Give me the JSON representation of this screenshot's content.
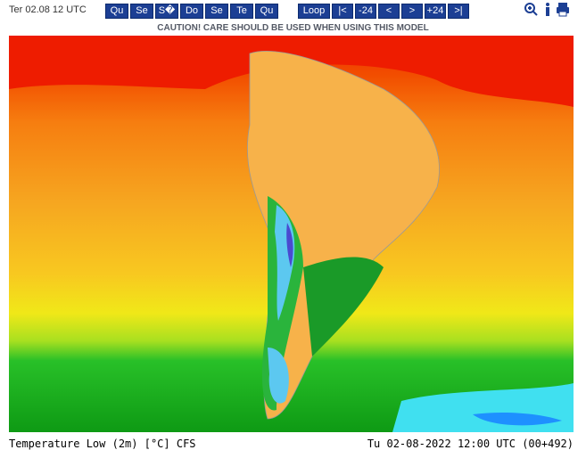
{
  "header": {
    "date": "Ter 02.08 12 UTC",
    "days": [
      "Qu",
      "Se",
      "S�",
      "Do",
      "Se",
      "Te",
      "Qu"
    ],
    "nav": [
      "Loop",
      "|<",
      "-24",
      "<",
      ">",
      "+24",
      ">|"
    ]
  },
  "caution": "CAUTION! CARE SHOULD BE USED WHEN USING THIS MODEL",
  "footer": {
    "left": "Temperature Low (2m) [°C] CFS",
    "right": "Tu 02-08-2022 12:00 UTC (00+492)"
  }
}
